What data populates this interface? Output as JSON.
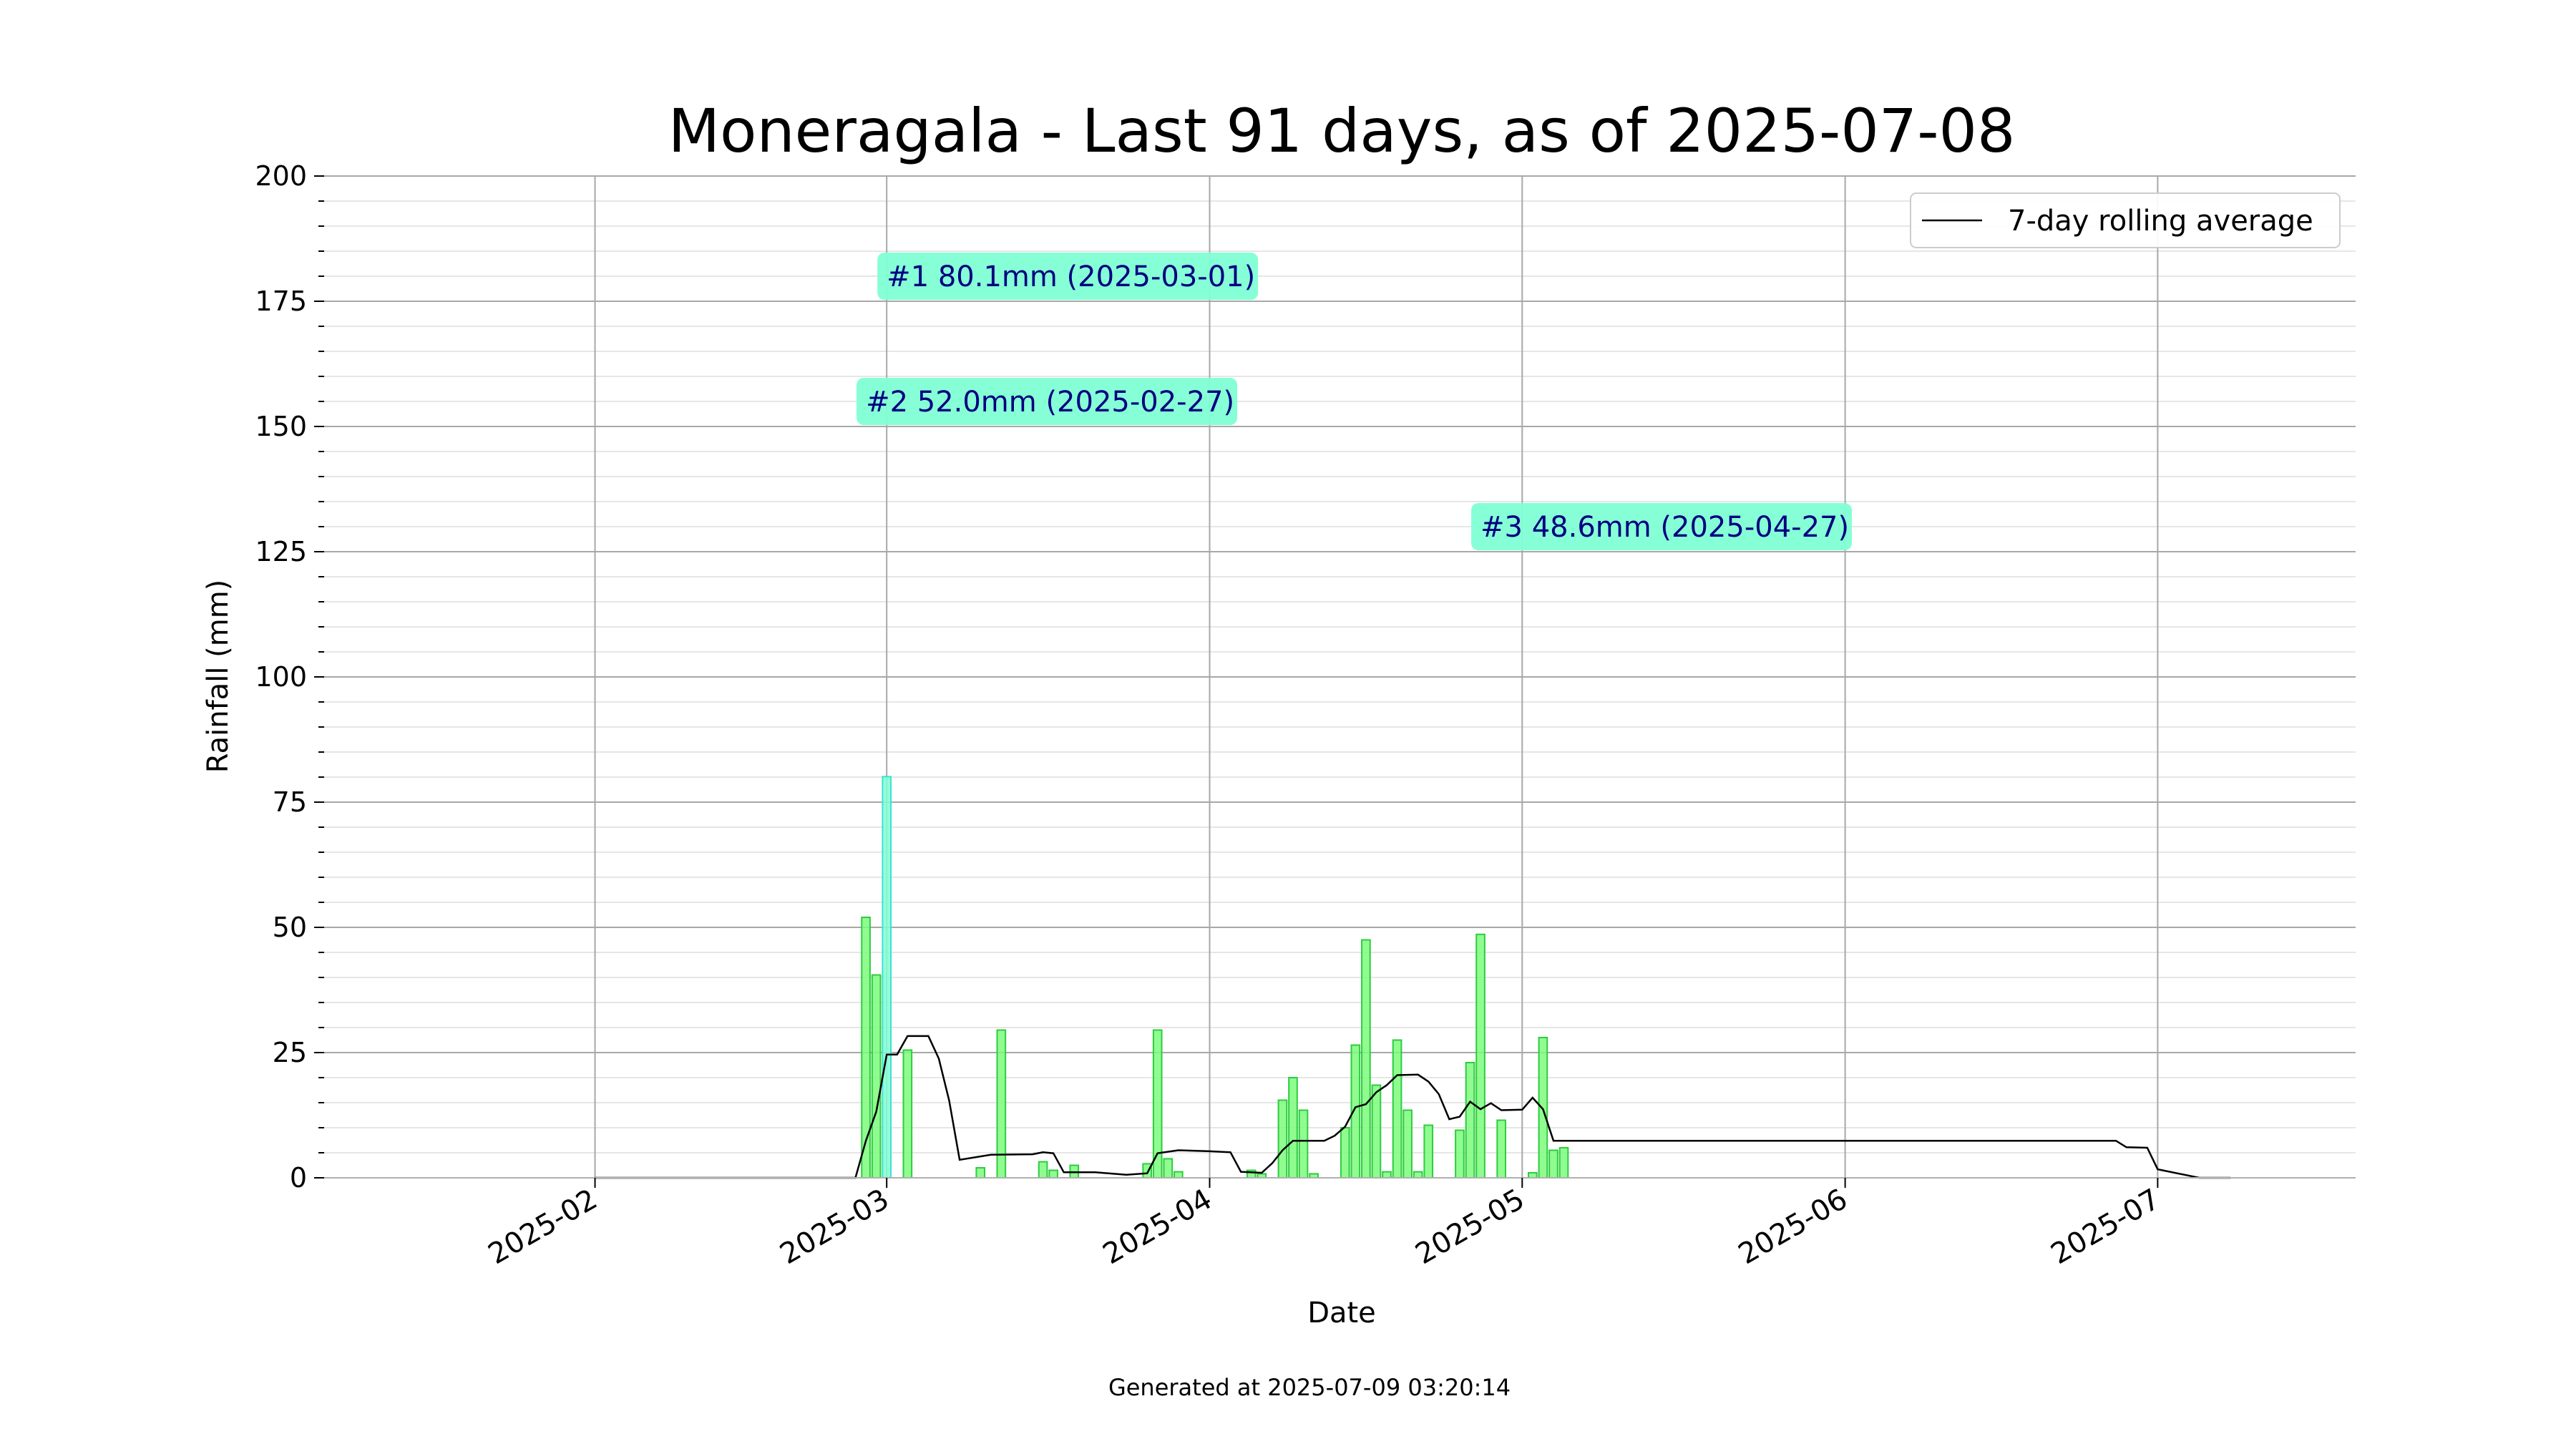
{
  "chart_data": {
    "type": "bar",
    "title": "Moneragala - Last 91 days, as of 2025-07-08",
    "xlabel": "Date",
    "ylabel": "Rainfall (mm)",
    "ylim": [
      0,
      200
    ],
    "yticks": [
      0,
      25,
      50,
      75,
      100,
      125,
      150,
      175,
      200
    ],
    "xlim": [
      "2025-01-06",
      "2025-07-20"
    ],
    "xticks": [
      "2025-02-01",
      "2025-03-01",
      "2025-04-01",
      "2025-05-01",
      "2025-06-01",
      "2025-07-01"
    ],
    "xtick_labels": [
      "2025-02",
      "2025-03",
      "2025-04",
      "2025-05",
      "2025-06",
      "2025-07"
    ],
    "grid": true,
    "legend": {
      "position": "top-right",
      "entries": [
        "7-day rolling average"
      ]
    },
    "footer": "Generated at 2025-07-09 03:20:14",
    "colors": {
      "bar": "#7CFC7C",
      "bar_edge": "#2ECC40",
      "top": "#7FFFD4",
      "top_edge": "#40E0D0",
      "label_bg": "#7FFFD4",
      "label_text": "#000080",
      "line": "#000000"
    },
    "series": [
      {
        "name": "Rainfall",
        "points": [
          [
            "2025-02-27",
            52.0
          ],
          [
            "2025-02-28",
            40.5
          ],
          [
            "2025-03-01",
            80.1
          ],
          [
            "2025-03-03",
            25.5
          ],
          [
            "2025-03-10",
            2.0
          ],
          [
            "2025-03-12",
            29.5
          ],
          [
            "2025-03-16",
            3.2
          ],
          [
            "2025-03-17",
            1.5
          ],
          [
            "2025-03-19",
            2.5
          ],
          [
            "2025-03-26",
            2.8
          ],
          [
            "2025-03-27",
            29.5
          ],
          [
            "2025-03-28",
            3.8
          ],
          [
            "2025-03-29",
            1.2
          ],
          [
            "2025-04-05",
            1.5
          ],
          [
            "2025-04-06",
            0.8
          ],
          [
            "2025-04-08",
            15.5
          ],
          [
            "2025-04-09",
            20.0
          ],
          [
            "2025-04-10",
            13.5
          ],
          [
            "2025-04-11",
            0.8
          ],
          [
            "2025-04-14",
            10.0
          ],
          [
            "2025-04-15",
            26.5
          ],
          [
            "2025-04-16",
            47.5
          ],
          [
            "2025-04-17",
            18.5
          ],
          [
            "2025-04-18",
            1.2
          ],
          [
            "2025-04-19",
            27.5
          ],
          [
            "2025-04-20",
            13.5
          ],
          [
            "2025-04-21",
            1.2
          ],
          [
            "2025-04-22",
            10.5
          ],
          [
            "2025-04-25",
            9.5
          ],
          [
            "2025-04-26",
            23.0
          ],
          [
            "2025-04-27",
            48.6
          ],
          [
            "2025-04-29",
            11.5
          ],
          [
            "2025-05-02",
            1.0
          ],
          [
            "2025-05-03",
            28.0
          ],
          [
            "2025-05-04",
            5.5
          ],
          [
            "2025-05-05",
            6.0
          ]
        ]
      },
      {
        "name": "7-day rolling average",
        "points": [
          [
            "2025-02-01",
            0.0
          ],
          [
            "2025-02-26",
            0.0
          ],
          [
            "2025-02-27",
            7.4
          ],
          [
            "2025-02-28",
            13.2
          ],
          [
            "2025-03-01",
            24.6
          ],
          [
            "2025-03-02",
            24.6
          ],
          [
            "2025-03-03",
            28.3
          ],
          [
            "2025-03-05",
            28.3
          ],
          [
            "2025-03-06",
            23.8
          ],
          [
            "2025-03-07",
            15.4
          ],
          [
            "2025-03-08",
            3.6
          ],
          [
            "2025-03-11",
            4.6
          ],
          [
            "2025-03-15",
            4.7
          ],
          [
            "2025-03-16",
            5.1
          ],
          [
            "2025-03-17",
            4.9
          ],
          [
            "2025-03-18",
            1.1
          ],
          [
            "2025-03-21",
            1.1
          ],
          [
            "2025-03-24",
            0.6
          ],
          [
            "2025-03-26",
            0.9
          ],
          [
            "2025-03-27",
            4.9
          ],
          [
            "2025-03-29",
            5.5
          ],
          [
            "2025-04-01",
            5.3
          ],
          [
            "2025-04-03",
            5.1
          ],
          [
            "2025-04-04",
            1.2
          ],
          [
            "2025-04-06",
            1.0
          ],
          [
            "2025-04-07",
            2.9
          ],
          [
            "2025-04-08",
            5.5
          ],
          [
            "2025-04-09",
            7.4
          ],
          [
            "2025-04-12",
            7.4
          ],
          [
            "2025-04-13",
            8.4
          ],
          [
            "2025-04-14",
            10.2
          ],
          [
            "2025-04-15",
            14.1
          ],
          [
            "2025-04-16",
            14.7
          ],
          [
            "2025-04-17",
            17.1
          ],
          [
            "2025-04-18",
            18.5
          ],
          [
            "2025-04-19",
            20.5
          ],
          [
            "2025-04-21",
            20.6
          ],
          [
            "2025-04-22",
            19.2
          ],
          [
            "2025-04-23",
            16.7
          ],
          [
            "2025-04-24",
            11.7
          ],
          [
            "2025-04-25",
            12.2
          ],
          [
            "2025-04-26",
            15.2
          ],
          [
            "2025-04-27",
            13.7
          ],
          [
            "2025-04-28",
            14.9
          ],
          [
            "2025-04-29",
            13.5
          ],
          [
            "2025-05-01",
            13.6
          ],
          [
            "2025-05-02",
            16.0
          ],
          [
            "2025-05-03",
            13.7
          ],
          [
            "2025-05-04",
            7.4
          ],
          [
            "2025-06-27",
            7.4
          ],
          [
            "2025-06-28",
            6.1
          ],
          [
            "2025-06-30",
            6.0
          ],
          [
            "2025-07-01",
            1.7
          ],
          [
            "2025-07-05",
            0.0
          ],
          [
            "2025-07-08",
            0.0
          ]
        ]
      }
    ],
    "annotations": [
      {
        "text": "#1 80.1mm (2025-03-01)",
        "x": "2025-03-01",
        "y": 180
      },
      {
        "text": "#2 52.0mm (2025-02-27)",
        "x": "2025-02-27",
        "y": 155
      },
      {
        "text": "#3 48.6mm (2025-04-27)",
        "x": "2025-04-27",
        "y": 130
      }
    ],
    "top_highlight": "2025-03-01"
  }
}
